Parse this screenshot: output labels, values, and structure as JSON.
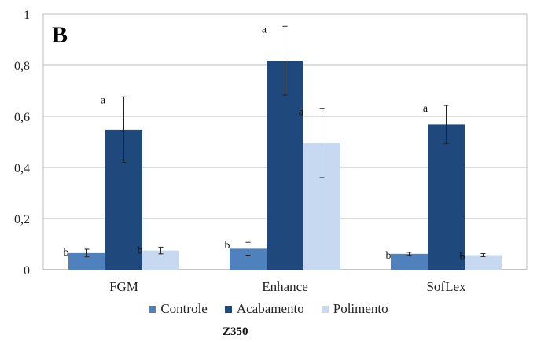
{
  "chart_data": {
    "type": "bar",
    "panel_label": "B",
    "categories": [
      "FGM",
      "Enhance",
      "SofLex"
    ],
    "series": [
      {
        "name": "Controle",
        "color": "#4f81bd",
        "values": [
          0.065,
          0.082,
          0.062
        ],
        "errors": [
          0.015,
          0.025,
          0.006
        ],
        "letters": [
          "b",
          "b",
          "b"
        ]
      },
      {
        "name": "Acabamento",
        "color": "#1f497d",
        "values": [
          0.548,
          0.818,
          0.568
        ],
        "errors": [
          0.128,
          0.135,
          0.075
        ],
        "letters": [
          "a",
          "a",
          "a"
        ]
      },
      {
        "name": "Polimento",
        "color": "#c6d9f1",
        "values": [
          0.075,
          0.495,
          0.057
        ],
        "errors": [
          0.013,
          0.135,
          0.006
        ],
        "letters": [
          "b",
          "a",
          "b"
        ]
      }
    ],
    "y_ticks": [
      "0",
      "0,2",
      "0,4",
      "0,6",
      "0,8",
      "1"
    ],
    "ylim": [
      0,
      1
    ],
    "grid": true,
    "legend_position": "bottom",
    "footer_label": "Z350"
  }
}
